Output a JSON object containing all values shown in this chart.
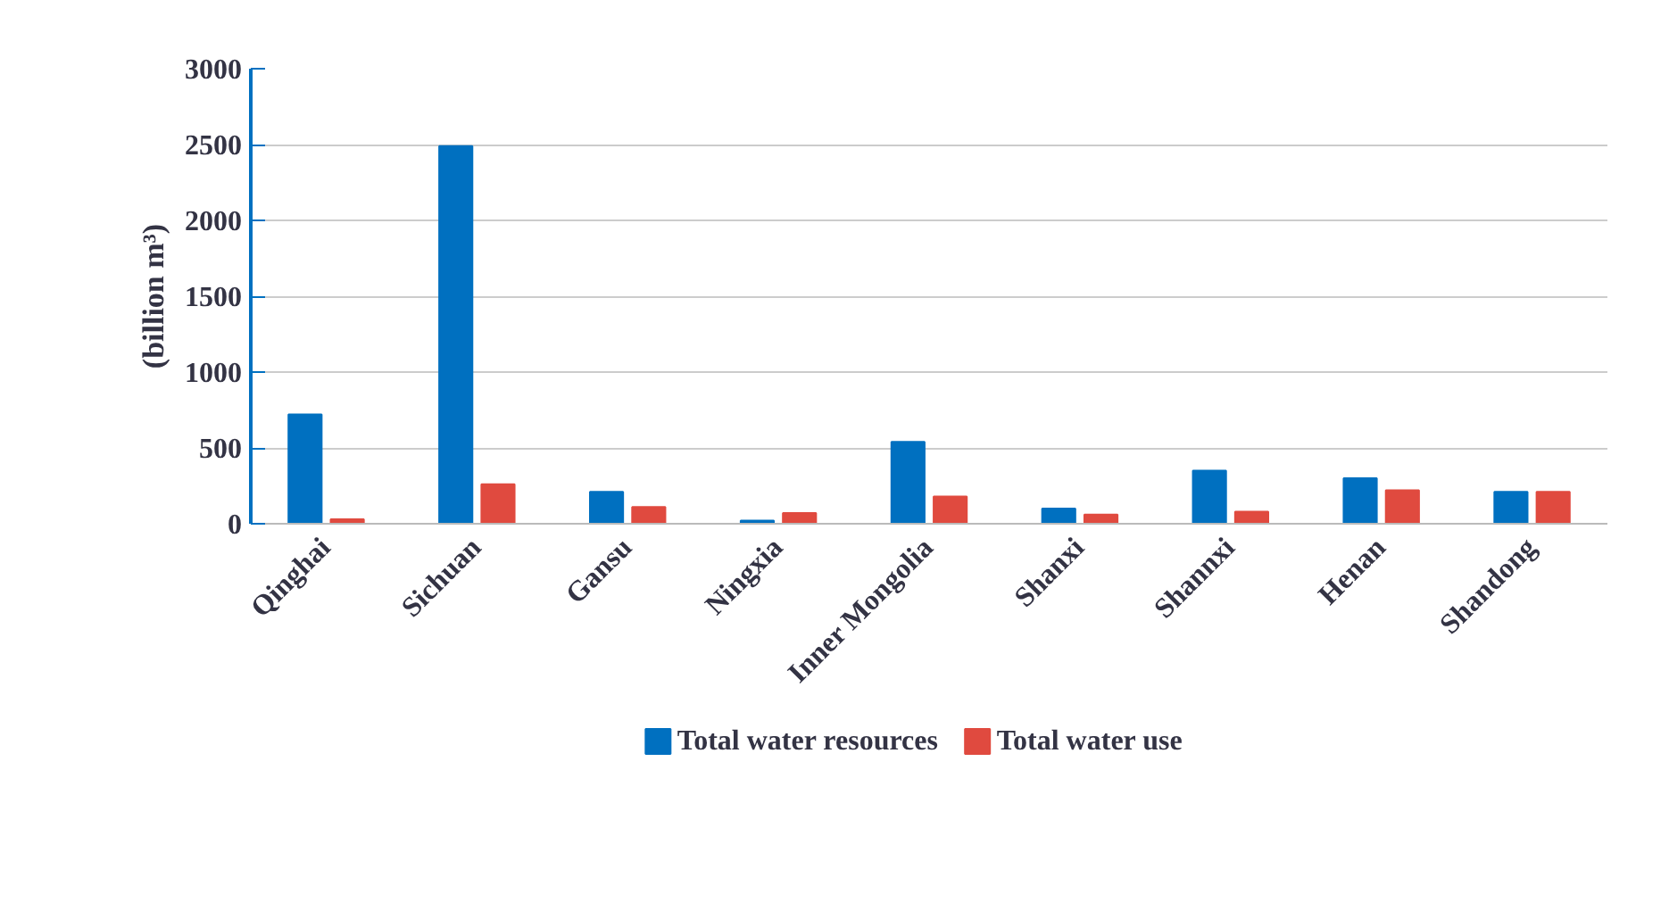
{
  "chart_data": {
    "type": "bar",
    "ylabel": "(billion m³)",
    "categories": [
      "Qinghai",
      "Sichuan",
      "Gansu",
      "Ningxia",
      "Inner Mongolia",
      "Shanxi",
      "Shannxi",
      "Henan",
      "Shandong"
    ],
    "series": [
      {
        "name": "Total water resources",
        "color": "#0070c0",
        "values": [
          720,
          2490,
          210,
          20,
          540,
          100,
          350,
          300,
          210
        ]
      },
      {
        "name": "Total water use",
        "color": "#e04a3f",
        "values": [
          30,
          260,
          110,
          70,
          180,
          60,
          80,
          220,
          210
        ]
      }
    ],
    "ylim": [
      0,
      3000
    ],
    "yticks": [
      0,
      500,
      1000,
      1500,
      2000,
      2500,
      3000
    ],
    "grid": "y",
    "legend": "bottom"
  }
}
